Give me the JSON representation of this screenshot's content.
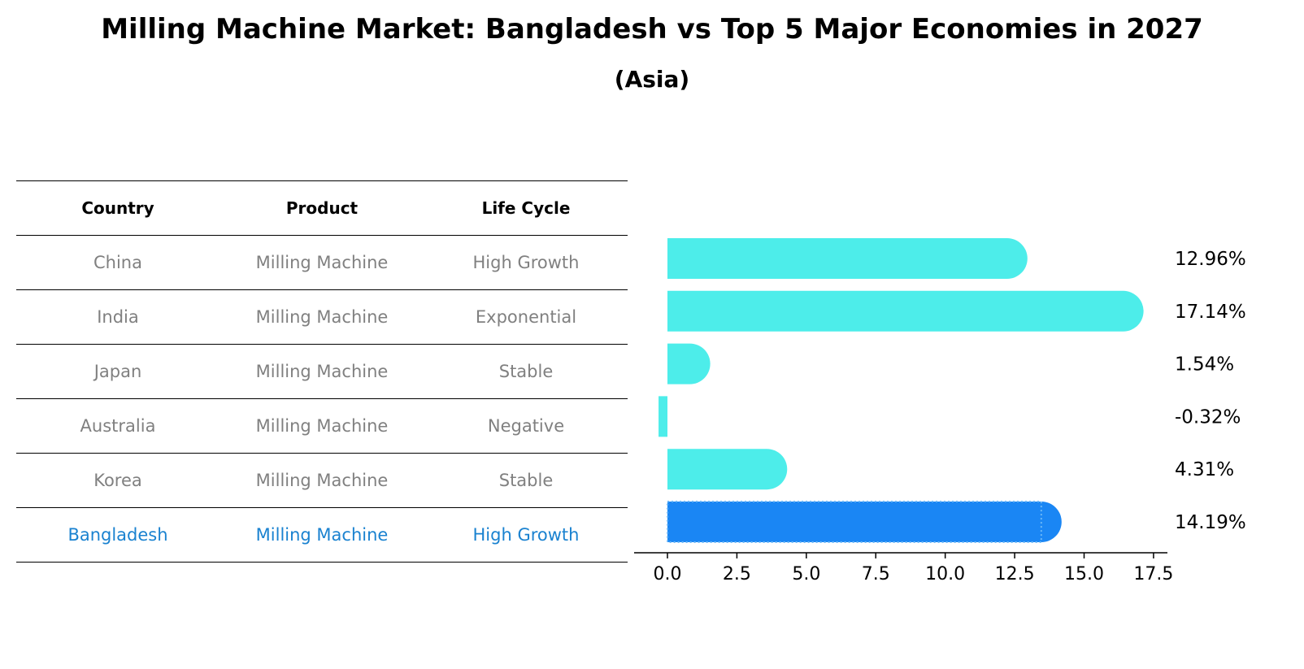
{
  "title": "Milling Machine Market: Bangladesh vs Top 5 Major Economies in 2027",
  "subtitle": "(Asia)",
  "table": {
    "headers": [
      "Country",
      "Product",
      "Life Cycle"
    ],
    "rows": [
      {
        "country": "China",
        "product": "Milling Machine",
        "life_cycle": "High Growth"
      },
      {
        "country": "India",
        "product": "Milling Machine",
        "life_cycle": "Exponential"
      },
      {
        "country": "Japan",
        "product": "Milling Machine",
        "life_cycle": "Stable"
      },
      {
        "country": "Australia",
        "product": "Milling Machine",
        "life_cycle": "Negative"
      },
      {
        "country": "Korea",
        "product": "Milling Machine",
        "life_cycle": "Stable"
      },
      {
        "country": "Bangladesh",
        "product": "Milling Machine",
        "life_cycle": "High Growth"
      }
    ]
  },
  "chart_data": {
    "type": "bar",
    "orientation": "horizontal",
    "categories": [
      "China",
      "India",
      "Japan",
      "Australia",
      "Korea",
      "Bangladesh"
    ],
    "values": [
      12.96,
      17.14,
      1.54,
      -0.32,
      4.31,
      14.19
    ],
    "value_labels": [
      "12.96%",
      "17.14%",
      "1.54%",
      "-0.32%",
      "4.31%",
      "14.19%"
    ],
    "highlight": "Bangladesh",
    "xlim": [
      -1.2,
      18.0
    ],
    "xticks": [
      0.0,
      2.5,
      5.0,
      7.5,
      10.0,
      12.5,
      15.0,
      17.5
    ],
    "xtick_labels": [
      "0.0",
      "2.5",
      "5.0",
      "7.5",
      "10.0",
      "12.5",
      "15.0",
      "17.5"
    ],
    "xlabel": "",
    "ylabel": "",
    "colors": {
      "default": "#4dedea",
      "highlight": "#1a86f4"
    }
  }
}
